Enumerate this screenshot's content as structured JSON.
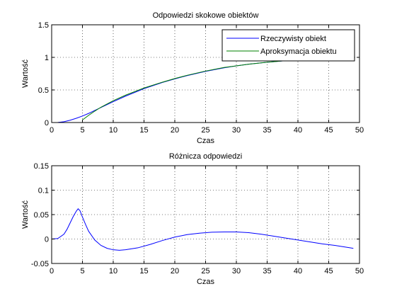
{
  "chart_data": [
    {
      "type": "line",
      "title": "Odpowiedzi skokowe obiektów",
      "xlabel": "Czas",
      "ylabel": "Wartość",
      "xlim": [
        0,
        50
      ],
      "ylim": [
        0,
        1.5
      ],
      "xticks": [
        0,
        5,
        10,
        15,
        20,
        25,
        30,
        35,
        40,
        45,
        50
      ],
      "yticks": [
        0,
        0.5,
        1,
        1.5
      ],
      "xtick_labels": [
        "0",
        "5",
        "10",
        "15",
        "20",
        "25",
        "30",
        "35",
        "40",
        "45",
        "50"
      ],
      "ytick_labels": [
        "0",
        "0.5",
        "1",
        "1.5"
      ],
      "grid": true,
      "legend": "top-right",
      "series": [
        {
          "name": "Rzeczywisty obiekt",
          "color": "#0000ff",
          "x": [
            0,
            1,
            2,
            3,
            4,
            5,
            6,
            7,
            8,
            10,
            12,
            15,
            18,
            20,
            22,
            25,
            28,
            30,
            32,
            35,
            38,
            40
          ],
          "y": [
            0,
            0.002,
            0.012,
            0.035,
            0.065,
            0.1,
            0.14,
            0.185,
            0.23,
            0.32,
            0.405,
            0.52,
            0.615,
            0.67,
            0.72,
            0.785,
            0.84,
            0.87,
            0.895,
            0.925,
            0.95,
            0.96
          ]
        },
        {
          "name": "Aproksymacja obiektu",
          "color": "#008000",
          "x": [
            5,
            5,
            6,
            7,
            8,
            10,
            12,
            15,
            18,
            20,
            22,
            25,
            28,
            30,
            32,
            35,
            38,
            40
          ],
          "y": [
            0,
            0.04,
            0.11,
            0.175,
            0.235,
            0.335,
            0.42,
            0.53,
            0.62,
            0.675,
            0.725,
            0.79,
            0.845,
            0.87,
            0.895,
            0.925,
            0.95,
            0.96
          ]
        }
      ]
    },
    {
      "type": "line",
      "title": "Różnicza odpowiedzi",
      "xlabel": "Czas",
      "ylabel": "Wartość",
      "xlim": [
        0,
        50
      ],
      "ylim": [
        -0.05,
        0.15
      ],
      "xticks": [
        0,
        5,
        10,
        15,
        20,
        25,
        30,
        35,
        40,
        45,
        50
      ],
      "yticks": [
        -0.05,
        0,
        0.05,
        0.1,
        0.15
      ],
      "xtick_labels": [
        "0",
        "5",
        "10",
        "15",
        "20",
        "25",
        "30",
        "35",
        "40",
        "45",
        "50"
      ],
      "ytick_labels": [
        "-0.05",
        "0",
        "0.05",
        "0.1",
        "0.15"
      ],
      "grid": true,
      "legend": "",
      "series": [
        {
          "color": "#0000ff",
          "x": [
            0,
            1,
            2,
            2.5,
            3,
            3.5,
            4,
            4.3,
            4.6,
            5,
            5.5,
            6,
            7,
            8,
            9,
            10,
            11,
            12,
            14,
            16,
            18,
            20,
            22,
            24,
            26,
            28,
            30,
            32,
            34,
            36,
            38,
            40,
            42,
            44,
            46,
            48,
            49
          ],
          "y": [
            0,
            0.001,
            0.01,
            0.02,
            0.033,
            0.046,
            0.057,
            0.062,
            0.058,
            0.045,
            0.03,
            0.016,
            -0.002,
            -0.013,
            -0.019,
            -0.022,
            -0.023,
            -0.022,
            -0.018,
            -0.011,
            -0.003,
            0.004,
            0.009,
            0.012,
            0.014,
            0.0145,
            0.0145,
            0.013,
            0.01,
            0.006,
            0.002,
            -0.002,
            -0.006,
            -0.01,
            -0.013,
            -0.017,
            -0.019
          ]
        }
      ]
    }
  ]
}
